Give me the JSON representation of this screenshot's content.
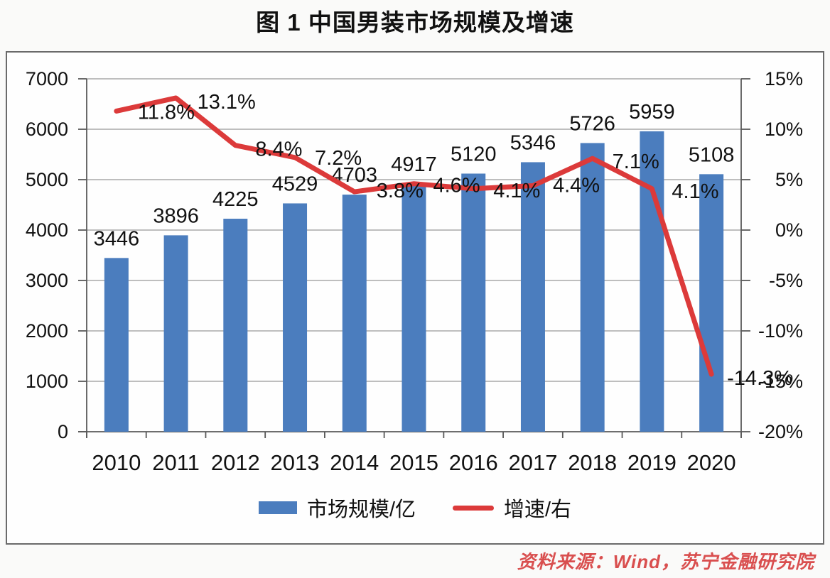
{
  "title": "图 1  中国男装市场规模及增速",
  "source_note": "资料来源：Wind，苏宁金融研究院",
  "colors": {
    "bar": "#4B7DBE",
    "line": "#DC3A3A",
    "source_text": "#D94F4F",
    "axis": "#595959",
    "gridline": "#A8A8A8",
    "label_text": "#111111"
  },
  "legend": [
    {
      "label": "市场规模/亿",
      "type": "bar",
      "color": "#4B7DBE"
    },
    {
      "label": "增速/右",
      "type": "line",
      "color": "#DC3A3A"
    }
  ],
  "chart_data": {
    "type": "combo",
    "title": "图 1  中国男装市场规模及增速",
    "categories": [
      "2010",
      "2011",
      "2012",
      "2013",
      "2014",
      "2015",
      "2016",
      "2017",
      "2018",
      "2019",
      "2020"
    ],
    "series": [
      {
        "name": "市场规模/亿",
        "type": "bar",
        "axis": "left",
        "color": "#4B7DBE",
        "values": [
          3446,
          3896,
          4225,
          4529,
          4703,
          4917,
          5120,
          5346,
          5726,
          5959,
          5108
        ],
        "labels": [
          "3446",
          "3896",
          "4225",
          "4529",
          "4703",
          "4917",
          "5120",
          "5346",
          "5726",
          "5959",
          "5108"
        ]
      },
      {
        "name": "增速/右",
        "type": "line",
        "axis": "right",
        "color": "#DC3A3A",
        "values": [
          11.8,
          13.1,
          8.4,
          7.2,
          3.8,
          4.6,
          4.1,
          4.4,
          7.1,
          4.1,
          -14.3
        ],
        "labels": [
          "11.8%",
          "13.1%",
          "8.4%",
          "7.2%",
          "3.8%",
          "4.6%",
          "4.1%",
          "4.4%",
          "7.1%",
          "4.1%",
          "-14.3%"
        ]
      }
    ],
    "left_axis": {
      "min": 0,
      "max": 7000,
      "step": 1000,
      "ticks": [
        "0",
        "1000",
        "2000",
        "3000",
        "4000",
        "5000",
        "6000",
        "7000"
      ]
    },
    "right_axis": {
      "min": -20,
      "max": 15,
      "step": 5,
      "ticks": [
        "-20%",
        "-15%",
        "-10%",
        "-5%",
        "0%",
        "5%",
        "10%",
        "15%"
      ]
    },
    "grid": true,
    "legend_position": "bottom"
  }
}
